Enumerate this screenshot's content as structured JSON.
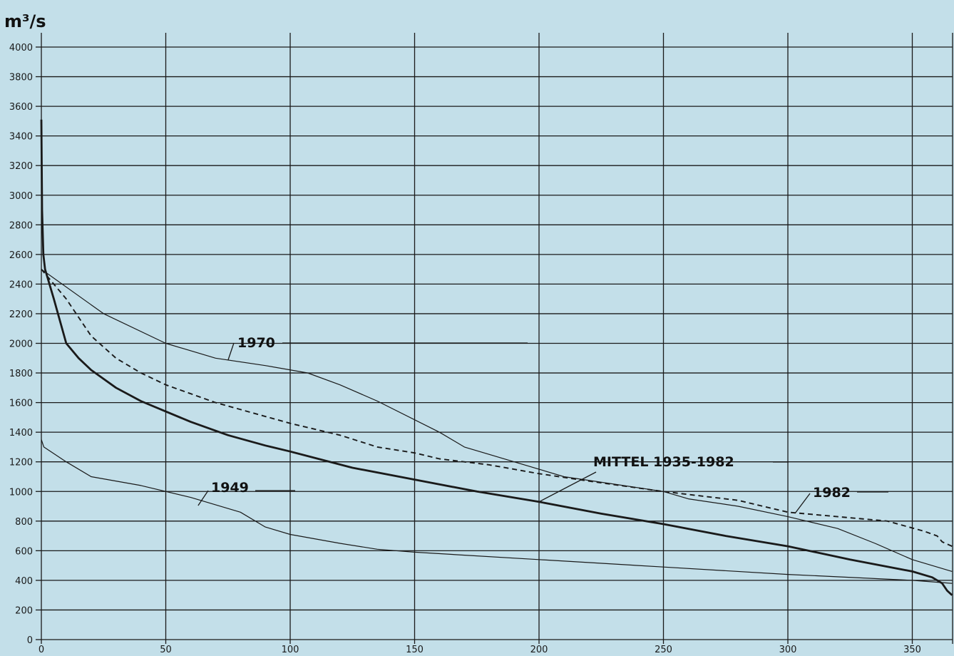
{
  "chart_data": {
    "type": "line",
    "title": "",
    "ylabel": "m³/s",
    "xlabel": "",
    "xlim": [
      0,
      366
    ],
    "ylim": [
      0,
      4000
    ],
    "grid": true,
    "background_color": "#c3dfe9",
    "line_color": "#1a1a1a",
    "x_ticks": [
      "0",
      "50",
      "100",
      "150",
      "200",
      "250",
      "300",
      "350"
    ],
    "y_ticks": [
      "0",
      "200",
      "400",
      "600",
      "800",
      "1000",
      "1200",
      "1400",
      "1600",
      "1800",
      "2000",
      "2200",
      "2400",
      "2600",
      "2800",
      "3000",
      "3200",
      "3400",
      "3600",
      "3800",
      "4000"
    ],
    "series": [
      {
        "name": "1970",
        "style": "thin",
        "points": [
          [
            0,
            2500
          ],
          [
            25,
            2200
          ],
          [
            50,
            2000
          ],
          [
            70,
            1900
          ],
          [
            90,
            1850
          ],
          [
            107,
            1800
          ],
          [
            120,
            1720
          ],
          [
            135,
            1610
          ],
          [
            160,
            1400
          ],
          [
            170,
            1300
          ],
          [
            190,
            1200
          ],
          [
            210,
            1100
          ],
          [
            230,
            1050
          ],
          [
            250,
            1000
          ],
          [
            260,
            950
          ],
          [
            280,
            900
          ],
          [
            300,
            830
          ],
          [
            320,
            750
          ],
          [
            335,
            650
          ],
          [
            350,
            540
          ],
          [
            366,
            460
          ]
        ]
      },
      {
        "name": "1982",
        "style": "dashed",
        "points": [
          [
            0,
            2500
          ],
          [
            10,
            2300
          ],
          [
            20,
            2050
          ],
          [
            30,
            1900
          ],
          [
            40,
            1800
          ],
          [
            50,
            1720
          ],
          [
            70,
            1600
          ],
          [
            100,
            1460
          ],
          [
            120,
            1380
          ],
          [
            135,
            1300
          ],
          [
            150,
            1260
          ],
          [
            160,
            1220
          ],
          [
            180,
            1180
          ],
          [
            200,
            1120
          ],
          [
            220,
            1070
          ],
          [
            250,
            1000
          ],
          [
            280,
            940
          ],
          [
            300,
            860
          ],
          [
            320,
            830
          ],
          [
            340,
            800
          ],
          [
            355,
            730
          ],
          [
            360,
            700
          ],
          [
            362,
            660
          ],
          [
            366,
            630
          ]
        ]
      },
      {
        "name": "MITTEL",
        "style": "thick",
        "points": [
          [
            0,
            3510
          ],
          [
            0.3,
            2900
          ],
          [
            0.8,
            2600
          ],
          [
            1.5,
            2500
          ],
          [
            5,
            2300
          ],
          [
            10,
            2000
          ],
          [
            15,
            1900
          ],
          [
            20,
            1820
          ],
          [
            30,
            1700
          ],
          [
            40,
            1610
          ],
          [
            50,
            1540
          ],
          [
            60,
            1470
          ],
          [
            75,
            1380
          ],
          [
            90,
            1310
          ],
          [
            100,
            1270
          ],
          [
            125,
            1160
          ],
          [
            150,
            1080
          ],
          [
            175,
            1000
          ],
          [
            200,
            930
          ],
          [
            225,
            850
          ],
          [
            250,
            780
          ],
          [
            275,
            700
          ],
          [
            300,
            630
          ],
          [
            325,
            540
          ],
          [
            350,
            460
          ],
          [
            358,
            420
          ],
          [
            362,
            380
          ],
          [
            364,
            330
          ],
          [
            366,
            300
          ]
        ]
      },
      {
        "name": "1949",
        "style": "thin",
        "points": [
          [
            0,
            1350
          ],
          [
            1,
            1300
          ],
          [
            10,
            1200
          ],
          [
            20,
            1100
          ],
          [
            40,
            1040
          ],
          [
            60,
            960
          ],
          [
            80,
            860
          ],
          [
            90,
            760
          ],
          [
            100,
            710
          ],
          [
            120,
            650
          ],
          [
            135,
            610
          ],
          [
            150,
            590
          ],
          [
            200,
            540
          ],
          [
            250,
            490
          ],
          [
            300,
            440
          ],
          [
            350,
            400
          ],
          [
            366,
            380
          ]
        ]
      }
    ],
    "annotations": [
      {
        "text": "1970",
        "series": "1970"
      },
      {
        "text": "1949",
        "series": "1949"
      },
      {
        "text": "MITTEL  1935-1982",
        "series": "MITTEL"
      },
      {
        "text": "1982",
        "series": "1982"
      }
    ]
  }
}
